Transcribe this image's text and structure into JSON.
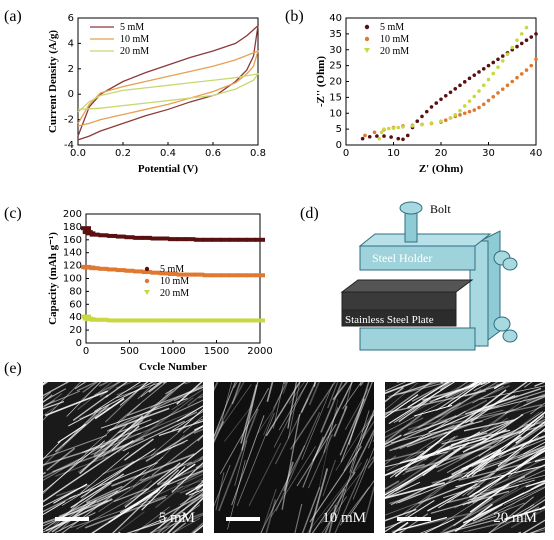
{
  "figure": {
    "panel_labels": [
      "(a)",
      "(b)",
      "(c)",
      "(d)",
      "(e)"
    ],
    "sem_labels": [
      "5 mM",
      "10 mM",
      "20 mM"
    ],
    "diagram": {
      "bolt": "Bolt",
      "holder": "Steel Holder",
      "plate": "Stainless Steel Plate"
    }
  },
  "chart_data": [
    {
      "panel": "a",
      "type": "line",
      "xlabel": "Potential (V)",
      "ylabel": "Current Density (A/g)",
      "xlim": [
        0.0,
        0.8
      ],
      "ylim": [
        -4,
        6
      ],
      "xticks": [
        0.0,
        0.2,
        0.4,
        0.6,
        0.8
      ],
      "xtick_labels": [
        "0.0",
        "0.2",
        "0.4",
        "0.6",
        "0.8"
      ],
      "yticks": [
        -4,
        -2,
        0,
        2,
        4,
        6
      ],
      "ytick_labels": [
        "-4",
        "-2",
        "0",
        "2",
        "4",
        "6"
      ],
      "legend": "top-left",
      "grid": false,
      "series": [
        {
          "name": "5 mM",
          "color": "#8b3a3a",
          "x": [
            0.0,
            0.05,
            0.1,
            0.2,
            0.3,
            0.4,
            0.5,
            0.6,
            0.7,
            0.75,
            0.8,
            0.78,
            0.75,
            0.7,
            0.62,
            0.5,
            0.4,
            0.3,
            0.2,
            0.1,
            0.05,
            0.0
          ],
          "y": [
            -3.3,
            -1.0,
            0.0,
            1.0,
            1.7,
            2.3,
            2.9,
            3.4,
            4.0,
            4.6,
            5.4,
            3.0,
            1.9,
            1.0,
            0.0,
            -0.6,
            -1.2,
            -1.7,
            -2.3,
            -2.9,
            -3.3,
            -3.6
          ]
        },
        {
          "name": "10 mM",
          "color": "#e8a050",
          "x": [
            0.0,
            0.05,
            0.1,
            0.2,
            0.3,
            0.4,
            0.5,
            0.6,
            0.7,
            0.8,
            0.78,
            0.75,
            0.7,
            0.6,
            0.5,
            0.4,
            0.3,
            0.2,
            0.1,
            0.05,
            0.0
          ],
          "y": [
            -2.3,
            -0.8,
            0.1,
            0.6,
            1.0,
            1.4,
            1.8,
            2.2,
            2.7,
            3.4,
            2.2,
            1.6,
            0.9,
            0.2,
            -0.3,
            -0.8,
            -1.2,
            -1.6,
            -2.0,
            -2.3,
            -2.5
          ]
        },
        {
          "name": "20 mM",
          "color": "#c8d870",
          "x": [
            0.0,
            0.05,
            0.1,
            0.2,
            0.3,
            0.4,
            0.5,
            0.6,
            0.7,
            0.8,
            0.78,
            0.7,
            0.6,
            0.5,
            0.4,
            0.3,
            0.2,
            0.1,
            0.0
          ],
          "y": [
            -1.4,
            -0.6,
            -0.1,
            0.3,
            0.5,
            0.7,
            0.9,
            1.1,
            1.3,
            1.6,
            1.1,
            0.4,
            -0.1,
            -0.3,
            -0.5,
            -0.7,
            -0.9,
            -1.1,
            -1.2
          ]
        }
      ]
    },
    {
      "panel": "b",
      "type": "scatter",
      "xlabel": "Z' (Ohm)",
      "ylabel": "-Z'' (Ohm)",
      "xlim": [
        0,
        40
      ],
      "ylim": [
        0,
        40
      ],
      "xticks": [
        0,
        10,
        20,
        30,
        40
      ],
      "xtick_labels": [
        "0",
        "10",
        "20",
        "30",
        "40"
      ],
      "yticks": [
        0,
        5,
        10,
        15,
        20,
        25,
        30,
        35,
        40
      ],
      "ytick_labels": [
        "0",
        "5",
        "10",
        "15",
        "20",
        "25",
        "30",
        "35",
        "40"
      ],
      "legend": "top-left",
      "grid": false,
      "series": [
        {
          "name": "5 mM",
          "color": "#5a1010",
          "x": [
            3.5,
            5,
            6.5,
            8,
            9.5,
            11,
            12,
            13,
            14,
            15,
            16,
            17,
            18,
            19,
            20,
            21,
            22,
            23,
            24,
            25,
            26,
            27,
            28,
            29,
            30,
            31,
            32,
            33,
            34,
            35,
            36,
            37,
            38,
            39,
            40
          ],
          "y": [
            2.0,
            2.6,
            2.8,
            2.8,
            2.5,
            2.0,
            1.8,
            3.0,
            5.5,
            7.5,
            9.0,
            10.5,
            12.0,
            13.2,
            14.4,
            15.5,
            16.6,
            17.7,
            18.8,
            19.9,
            21.0,
            22.0,
            23.0,
            24.0,
            25.0,
            26.0,
            27.0,
            28.0,
            29.0,
            30.0,
            31.0,
            32.0,
            33.0,
            34.0,
            35.0
          ]
        },
        {
          "name": "10 mM",
          "color": "#e07830",
          "x": [
            4,
            6,
            8,
            10,
            12,
            14,
            16,
            18,
            20,
            21,
            22,
            23,
            24,
            25,
            26,
            27,
            28,
            29,
            30,
            31,
            32,
            33,
            34,
            35,
            36,
            37,
            38,
            39,
            40
          ],
          "y": [
            3.0,
            4.0,
            4.8,
            5.5,
            6.0,
            6.2,
            6.5,
            6.8,
            7.2,
            7.8,
            8.5,
            9.0,
            9.5,
            10.0,
            10.5,
            11.0,
            11.8,
            12.8,
            14.0,
            15.2,
            16.4,
            17.6,
            18.8,
            20.0,
            21.2,
            22.4,
            23.6,
            25.0,
            27.0
          ]
        },
        {
          "name": "20 mM",
          "color": "#c8d840",
          "x": [
            7,
            7.5,
            8,
            9,
            10,
            11,
            12,
            14,
            16,
            18,
            20,
            22,
            23,
            24,
            25,
            26,
            27,
            28,
            29,
            30,
            31,
            32,
            33,
            34,
            35,
            36,
            37,
            38
          ],
          "y": [
            2.0,
            4.0,
            5.0,
            5.2,
            5.3,
            5.5,
            5.7,
            6.0,
            6.4,
            6.9,
            7.5,
            8.5,
            9.5,
            10.8,
            12.3,
            13.8,
            15.3,
            17.0,
            18.8,
            20.6,
            22.5,
            24.5,
            26.5,
            28.6,
            30.7,
            33.0,
            35.0,
            37.0
          ]
        }
      ]
    },
    {
      "panel": "c",
      "type": "scatter",
      "xlabel": "Cycle Number",
      "ylabel": "Capacity (mAh g⁻¹)",
      "xlim": [
        0,
        2000
      ],
      "ylim": [
        0,
        200
      ],
      "xticks": [
        0,
        500,
        1000,
        1500,
        2000
      ],
      "xtick_labels": [
        "0",
        "500",
        "1000",
        "1500",
        "2000"
      ],
      "yticks": [
        0,
        20,
        40,
        60,
        80,
        100,
        120,
        140,
        160,
        180,
        200
      ],
      "ytick_labels": [
        "0",
        "20",
        "40",
        "60",
        "80",
        "100",
        "120",
        "140",
        "160",
        "180",
        "200"
      ],
      "legend": "center",
      "grid": false,
      "series": [
        {
          "name": "5 mM",
          "color": "#5a1010",
          "x": [
            0,
            20,
            50,
            100,
            200,
            300,
            400,
            500,
            600,
            700,
            800,
            900,
            1000,
            1100,
            1200,
            1300,
            1400,
            1500,
            1600,
            1700,
            1800,
            1900,
            2000
          ],
          "y": [
            178,
            172,
            170,
            168,
            167,
            166,
            165,
            164,
            163,
            163,
            162,
            162,
            161,
            161,
            161,
            160,
            160,
            160,
            160,
            160,
            160,
            160,
            160
          ]
        },
        {
          "name": "10 mM",
          "color": "#e07830",
          "x": [
            0,
            20,
            50,
            100,
            200,
            300,
            400,
            500,
            600,
            700,
            800,
            900,
            1000,
            1100,
            1200,
            1300,
            1400,
            1500,
            1600,
            1700,
            1800,
            1900,
            2000
          ],
          "y": [
            118,
            117,
            117,
            116,
            115,
            114,
            113,
            112,
            111,
            110,
            109,
            108,
            107,
            106,
            106,
            106,
            105,
            105,
            105,
            105,
            105,
            105,
            105
          ]
        },
        {
          "name": "20 mM",
          "color": "#c8d840",
          "x": [
            0,
            20,
            50,
            100,
            200,
            300,
            400,
            500,
            600,
            700,
            800,
            900,
            1000,
            1100,
            1200,
            1300,
            1400,
            1500,
            1600,
            1700,
            1800,
            1900,
            2000
          ],
          "y": [
            41,
            38,
            37,
            36,
            36,
            35,
            35,
            35,
            35,
            35,
            35,
            35,
            35,
            35,
            35,
            35,
            35,
            35,
            35,
            35,
            35,
            35,
            35
          ]
        }
      ]
    }
  ]
}
